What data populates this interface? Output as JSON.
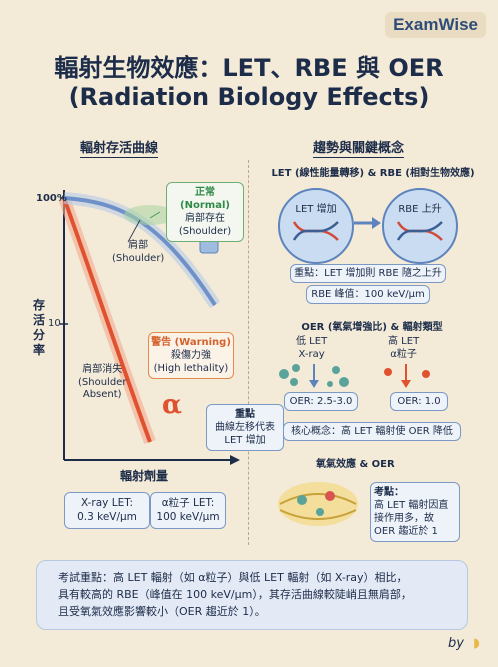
{
  "brand": "ExamWise",
  "title_line1": "輻射生物效應：LET、RBE 與 OER",
  "title_line2": "(Radiation Biology Effects)",
  "left_section": {
    "heading": "輻射存活曲線",
    "y_axis_label": "存活分率",
    "x_axis_label": "輻射劑量",
    "tick_100": "100%",
    "tick_10": "10",
    "normal_box": [
      "正常 (Normal)",
      "肩部存在",
      "(Shoulder)"
    ],
    "shoulder_label": [
      "肩部",
      "(Shoulder)"
    ],
    "warning_box": [
      "警告 (Warning)",
      "殺傷力強",
      "(High lethality)"
    ],
    "absent_label": [
      "肩部消失",
      "(Shoulder",
      "Absent)"
    ],
    "alpha_symbol": "α",
    "xray_box": [
      "X-ray LET:",
      "0.3 keV/μm"
    ],
    "alpha_box": [
      "α粒子 LET:",
      "100 keV/μm"
    ],
    "center_box": [
      "重點",
      "曲線左移代表",
      "LET 增加"
    ]
  },
  "right_section": {
    "heading": "趨勢與關鍵概念",
    "let_rbe_title": "LET (線性能量轉移) & RBE (相對生物效應)",
    "let_circle": "LET 增加",
    "rbe_circle": "RBE 上升",
    "key_point": "重點：LET 增加則 RBE 隨之上升",
    "rbe_peak": "RBE 峰值：100 keV/μm",
    "oer_title": "OER (氧氣增強比) & 輻射類型",
    "low_let": [
      "低 LET",
      "X-ray"
    ],
    "high_let": [
      "高 LET",
      "α粒子"
    ],
    "oer_low": "OER: 2.5-3.0",
    "oer_high": "OER: 1.0",
    "core_concept": "核心概念：高 LET 輻射使 OER 降低",
    "oxygen_title": "氧氣效應 & OER",
    "exam_point": [
      "考點：",
      "高 LET 輻射因直",
      "接作用多，故",
      "OER 趨近於 1"
    ]
  },
  "note": {
    "line1": "考試重點：高 LET 輻射（如 α粒子）與低 LET 輻射（如 X-ray）相比，",
    "line2": "具有較高的 RBE（峰值在 100 keV/μm），其存活曲線較陡峭且無肩部，",
    "line3": "且受氧氣效應影響較小（OER 趨近於 1）。"
  },
  "signature": "by",
  "colors": {
    "blue_curve": "#6f91c9",
    "red_curve": "#e0512f",
    "navy": "#1c2c49"
  }
}
